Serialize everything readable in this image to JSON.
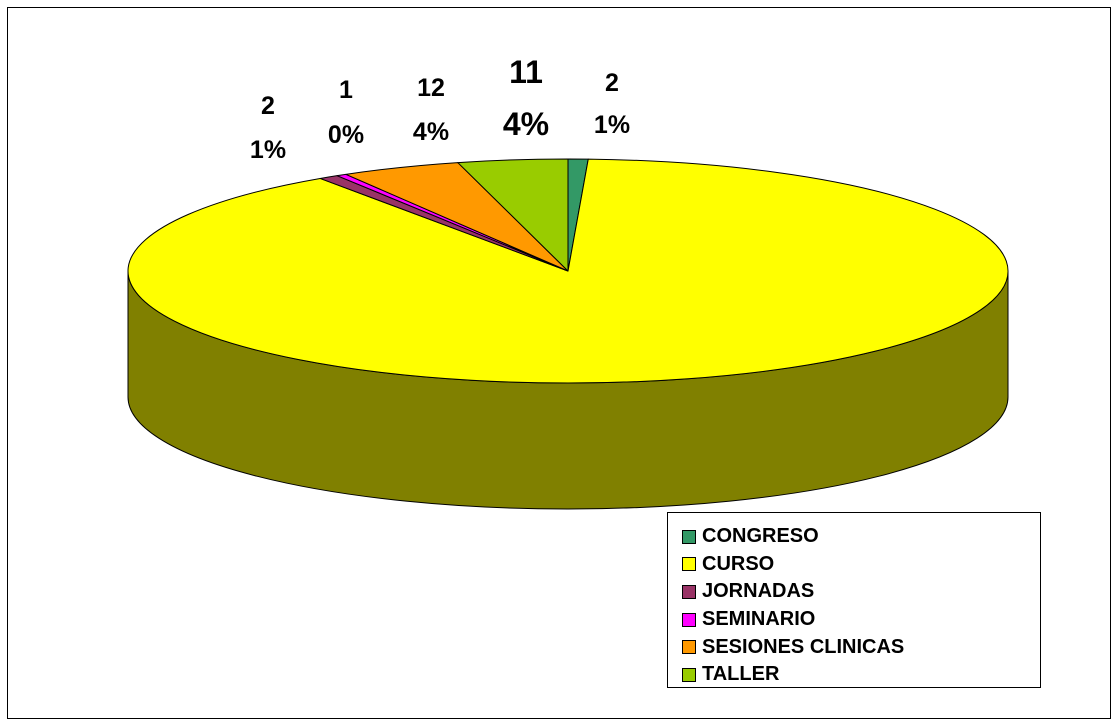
{
  "chart_data": {
    "type": "pie",
    "three_d": true,
    "title": "",
    "categories": [
      "CONGRESO",
      "CURSO",
      "JORNADAS",
      "SEMINARIO",
      "SESIONES CLINICAS",
      "TALLER"
    ],
    "values": [
      2,
      245,
      2,
      1,
      12,
      11
    ],
    "data_labels": [
      {
        "category": "CONGRESO",
        "value": "2",
        "percent": "1%"
      },
      {
        "category": "CURSO",
        "value": "",
        "percent": ""
      },
      {
        "category": "JORNADAS",
        "value": "2",
        "percent": "1%"
      },
      {
        "category": "SEMINARIO",
        "value": "1",
        "percent": "0%"
      },
      {
        "category": "SESIONES CLINICAS",
        "value": "12",
        "percent": "4%"
      },
      {
        "category": "TALLER",
        "value": "11",
        "percent": "4%"
      }
    ],
    "colors": [
      "#339966",
      "#ffff00",
      "#993366",
      "#ff00ff",
      "#ff9900",
      "#99cc00"
    ],
    "side_color": "#808000",
    "legend_position": "bottom-right"
  }
}
